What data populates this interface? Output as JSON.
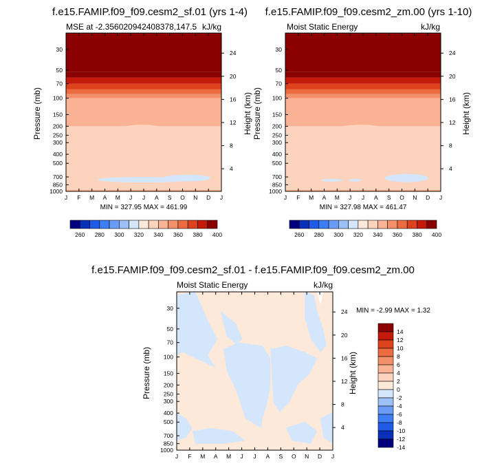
{
  "palette": {
    "bg": "#ffffff",
    "axis": "#000000",
    "mse_levels": [
      "#00007f",
      "#0a2fb8",
      "#1f5be6",
      "#3f7df5",
      "#6a9cf7",
      "#9cc0f5",
      "#d4e6fb",
      "#fde9d9",
      "#fcd3bd",
      "#f9b394",
      "#f49069",
      "#ec6b41",
      "#dc421c",
      "#c41a0c",
      "#8b0000"
    ],
    "diff_levels": [
      "#00007f",
      "#0a2fb8",
      "#1f5be6",
      "#3f7df5",
      "#6a9cf7",
      "#9cc0f5",
      "#d4e6fb",
      "#fde9d9",
      "#fcd3bd",
      "#f9b394",
      "#f49069",
      "#ec6b41",
      "#dc421c",
      "#c41a0c",
      "#8b0000"
    ]
  },
  "chart_data": [
    {
      "type": "heatmap",
      "title": "f.e15.FAMIP.f09_f09.cesm2_sf.01 (yrs 1-4)",
      "left_label": "MSE at -2.356020942408378,147.5",
      "right_label": "kJ/kg",
      "xlabel": "",
      "ylabel": "Pressure (mb)",
      "ylabel_right": "Height (km)",
      "x_ticks": [
        "J",
        "F",
        "M",
        "A",
        "M",
        "J",
        "J",
        "A",
        "S",
        "O",
        "N",
        "D",
        "J"
      ],
      "y_ticks": [
        "30",
        "50",
        "70",
        "100",
        "150",
        "200",
        "250",
        "300",
        "400",
        "500",
        "700",
        "850",
        "1000"
      ],
      "y_right_ticks": [
        "24",
        "20",
        "16",
        "12",
        "8",
        "4"
      ],
      "stats": "MIN = 327.95 MAX = 461.99",
      "colorbar_labels": [
        "260",
        "280",
        "300",
        "320",
        "340",
        "360",
        "380",
        "400"
      ],
      "bands": [
        {
          "p_top": 1000,
          "p_bot": 960,
          "value": 345
        },
        {
          "p_top": 960,
          "p_bot": 200,
          "value": 335
        },
        {
          "p_top": 200,
          "p_bot": 100,
          "value": 345
        },
        {
          "p_top": 100,
          "p_bot": 90,
          "value": 355
        },
        {
          "p_top": 90,
          "p_bot": 80,
          "value": 365
        },
        {
          "p_top": 80,
          "p_bot": 70,
          "value": 375
        },
        {
          "p_top": 70,
          "p_bot": 60,
          "value": 385
        },
        {
          "p_top": 60,
          "p_bot": 52,
          "value": 395
        },
        {
          "p_top": 52,
          "p_bot": 20,
          "value": 410
        }
      ],
      "min": 327.95,
      "max": 461.99
    },
    {
      "type": "heatmap",
      "title": "f.e15.FAMIP.f09_f09.cesm2_zm.00 (yrs 1-10)",
      "left_label": "Moist Static Energy",
      "right_label": "kJ/kg",
      "xlabel": "",
      "ylabel": "Pressure (mb)",
      "ylabel_right": "Height (km)",
      "x_ticks": [
        "J",
        "F",
        "M",
        "A",
        "M",
        "J",
        "J",
        "A",
        "S",
        "O",
        "N",
        "D",
        "J"
      ],
      "y_ticks": [
        "30",
        "50",
        "70",
        "100",
        "150",
        "200",
        "250",
        "300",
        "400",
        "500",
        "700",
        "850",
        "1000"
      ],
      "y_right_ticks": [
        "24",
        "20",
        "16",
        "12",
        "8",
        "4"
      ],
      "stats": "MIN = 327.98 MAX = 461.47",
      "colorbar_labels": [
        "260",
        "280",
        "300",
        "320",
        "340",
        "360",
        "380",
        "400"
      ],
      "min": 327.98,
      "max": 461.47
    },
    {
      "type": "heatmap",
      "title": "f.e15.FAMIP.f09_f09.cesm2_sf.01 - f.e15.FAMIP.f09_f09.cesm2_zm.00",
      "left_label": "Moist Static Energy",
      "right_label": "kJ/kg",
      "xlabel": "",
      "ylabel": "Pressure (mb)",
      "ylabel_right": "Height (km)",
      "x_ticks": [
        "J",
        "F",
        "M",
        "A",
        "M",
        "J",
        "J",
        "A",
        "S",
        "O",
        "N",
        "D",
        "J"
      ],
      "y_ticks": [
        "30",
        "50",
        "70",
        "100",
        "150",
        "200",
        "250",
        "300",
        "400",
        "500",
        "700",
        "850",
        "1000"
      ],
      "y_right_ticks": [
        "24",
        "20",
        "16",
        "12",
        "8",
        "4"
      ],
      "stats": "MIN = -2.99 MAX =  1.32",
      "colorbar_labels": [
        "14",
        "12",
        "10",
        "8",
        "6",
        "4",
        "2",
        "0",
        "-2",
        "-4",
        "-6",
        "-8",
        "-10",
        "-12",
        "-14"
      ],
      "min": -2.99,
      "max": 1.32
    }
  ]
}
